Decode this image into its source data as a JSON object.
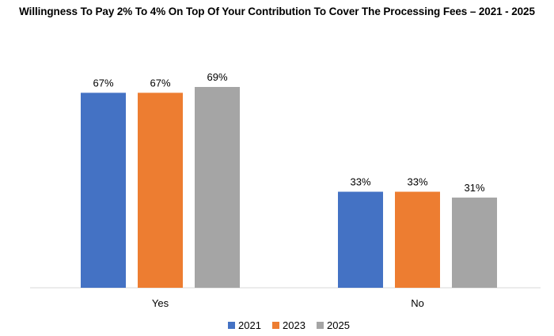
{
  "chart_data": {
    "type": "bar",
    "title": "Willingness To Pay 2% To 4% On Top Of Your Contribution To Cover The Processing Fees – 2021 - 2025",
    "categories": [
      "Yes",
      "No"
    ],
    "series": [
      {
        "name": "2021",
        "color": "#4472C4",
        "values": [
          67,
          33
        ],
        "labels": [
          "67%",
          "33%"
        ]
      },
      {
        "name": "2023",
        "color": "#ED7D31",
        "values": [
          67,
          33
        ],
        "labels": [
          "67%",
          "33%"
        ]
      },
      {
        "name": "2025",
        "color": "#A5A5A5",
        "values": [
          69,
          31
        ],
        "labels": [
          "69%",
          "31%"
        ]
      }
    ],
    "xlabel": "",
    "ylabel": "",
    "ylim": [
      0,
      80
    ],
    "grid": false,
    "legend": "bottom-center"
  }
}
